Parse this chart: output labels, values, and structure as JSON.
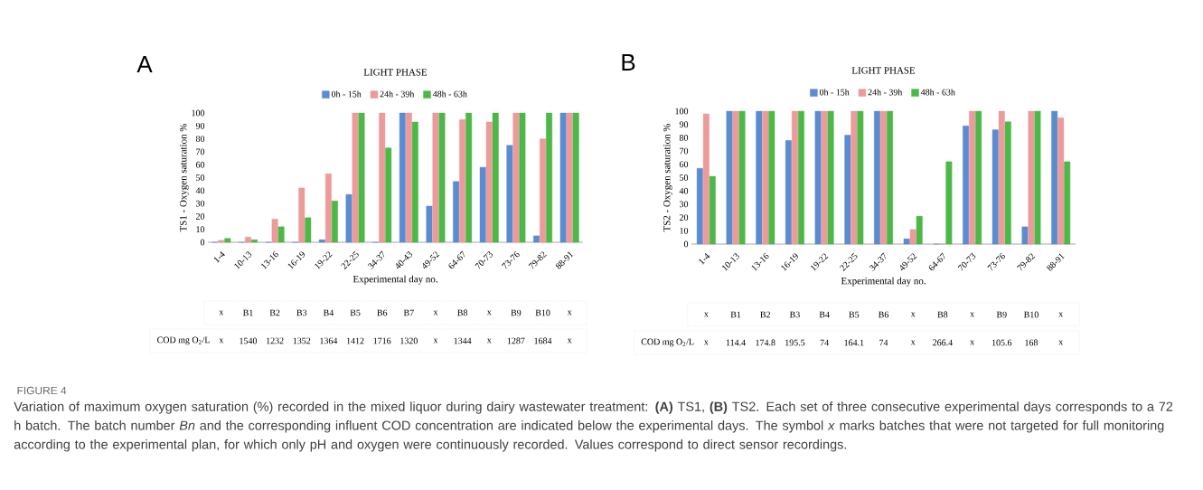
{
  "chart_data": [
    {
      "type": "bar",
      "title": "LIGHT PHASE",
      "xlabel": "Experimental day no.",
      "ylabel": "TS1 - Oxygen saturation %",
      "categories": [
        "1-4",
        "10-13",
        "13-16",
        "16-19",
        "19-22",
        "22-25",
        "34-37",
        "40-43",
        "49-52",
        "64-67",
        "70-73",
        "73-76",
        "79-82",
        "88-91"
      ],
      "series": [
        {
          "name": "0h - 15h",
          "color": "#5b8bd0",
          "values": [
            0,
            0,
            0,
            0,
            2,
            37,
            0,
            100,
            28,
            47,
            58,
            75,
            5,
            100
          ]
        },
        {
          "name": "24h - 39h",
          "color": "#ec9a9a",
          "values": [
            1.5,
            4,
            18,
            42,
            53,
            100,
            100,
            100,
            100,
            95,
            93,
            100,
            80,
            100
          ]
        },
        {
          "name": "48h - 63h",
          "color": "#4db848",
          "values": [
            3,
            2,
            12,
            19,
            32,
            100,
            73,
            93,
            100,
            100,
            100,
            100,
            100,
            100
          ]
        }
      ],
      "ylim": [
        0,
        100
      ],
      "yticks": [
        0,
        10,
        20,
        30,
        40,
        50,
        60,
        70,
        80,
        90,
        100
      ],
      "legend": "top",
      "annotations": [
        "A",
        "x",
        "B1",
        "B2",
        "B3",
        "B4",
        "B5",
        "B6",
        "B7",
        "x",
        "B8",
        "x",
        "B9",
        "B10",
        "x",
        "COD mg O$_{2}$/L",
        "x",
        "1540",
        "1232",
        "1352",
        "1364",
        "1412",
        "1716",
        "1320",
        "x",
        "1344",
        "x",
        "1287",
        "1684",
        "x",
        "FIGURE 4",
        "Variation of maximum oxygen saturation (%) recorded in the mixed liquor during dairy wastewater treatment: **(A)** TS1, **(B)** TS2. Each set of three consecutive experimental days corresponds to a 72 h batch. The batch number *Bn* and the corresponding influent COD concentration are indicated below the experimental days. The symbol *x* marks batches that were not targeted for full monitoring according to the experimental plan, for which only pH and oxygen were continuously recorded. Values correspond to direct sensor recordings."
      ]
    },
    {
      "type": "bar",
      "title": "LIGHT PHASE",
      "xlabel": "Experimental day no.",
      "ylabel": "TS2 - Oxygen saturation %",
      "categories": [
        "1-4",
        "10-13",
        "13-16",
        "16-19",
        "19-22",
        "22-25",
        "34-37",
        "49-52",
        "64-67",
        "70-73",
        "73-76",
        "79-82",
        "88-91"
      ],
      "series": [
        {
          "name": "0h - 15h",
          "color": "#5b8bd0",
          "values": [
            57,
            100,
            100,
            78,
            100,
            82,
            100,
            4,
            0,
            89,
            86,
            13,
            100
          ]
        },
        {
          "name": "24h - 39h",
          "color": "#ec9a9a",
          "values": [
            98,
            100,
            100,
            100,
            100,
            100,
            100,
            11,
            0,
            100,
            100,
            100,
            95
          ]
        },
        {
          "name": "48h - 63h",
          "color": "#4db848",
          "values": [
            51,
            100,
            100,
            100,
            100,
            100,
            100,
            21,
            62,
            100,
            92,
            100,
            62
          ]
        }
      ],
      "ylim": [
        0,
        100
      ],
      "yticks": [
        0,
        10,
        20,
        30,
        40,
        50,
        60,
        70,
        80,
        90,
        100
      ],
      "legend": "top",
      "annotations": [
        "B",
        "x",
        "B1",
        "B2",
        "B3",
        "B4",
        "B5",
        "B6",
        "x",
        "B8",
        "x",
        "B9",
        "B10",
        "x",
        "COD mg O$_{2}$/L",
        "x",
        "114.4",
        "174.8",
        "195.5",
        "74",
        "164.1",
        "74",
        "x",
        "266.4",
        "x",
        "105.6",
        "168",
        "x"
      ]
    }
  ]
}
